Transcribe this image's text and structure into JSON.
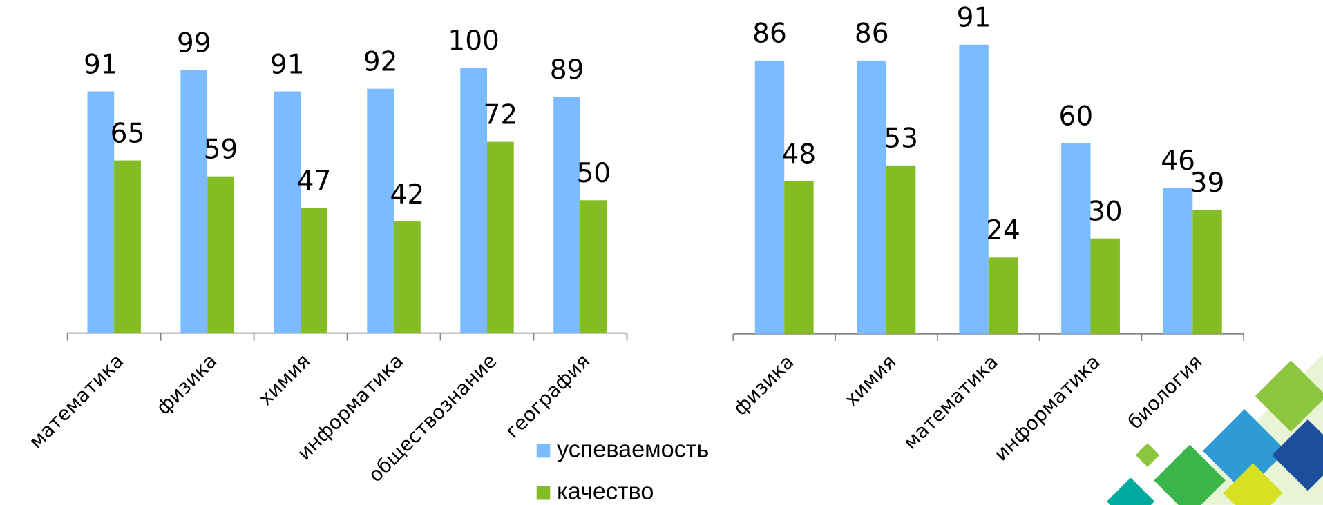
{
  "chart_data": [
    {
      "type": "bar",
      "categories": [
        "математика",
        "физика",
        "химия",
        "информатика",
        "обществознание",
        "география"
      ],
      "series": [
        {
          "name": "успеваемость",
          "color": "#7abcff",
          "values": [
            91,
            99,
            91,
            92,
            100,
            89
          ]
        },
        {
          "name": "качество",
          "color": "#84bd23",
          "values": [
            65,
            59,
            47,
            42,
            72,
            50
          ]
        }
      ],
      "ylim": [
        0,
        120
      ]
    },
    {
      "type": "bar",
      "categories": [
        "физика",
        "химия",
        "математика",
        "информатика",
        "биология"
      ],
      "series": [
        {
          "color": "#7abcff",
          "values": [
            86,
            86,
            91,
            60,
            46
          ]
        },
        {
          "color": "#84bd23",
          "values": [
            48,
            53,
            24,
            30,
            39
          ]
        }
      ],
      "ylim": [
        0,
        100
      ]
    }
  ]
}
